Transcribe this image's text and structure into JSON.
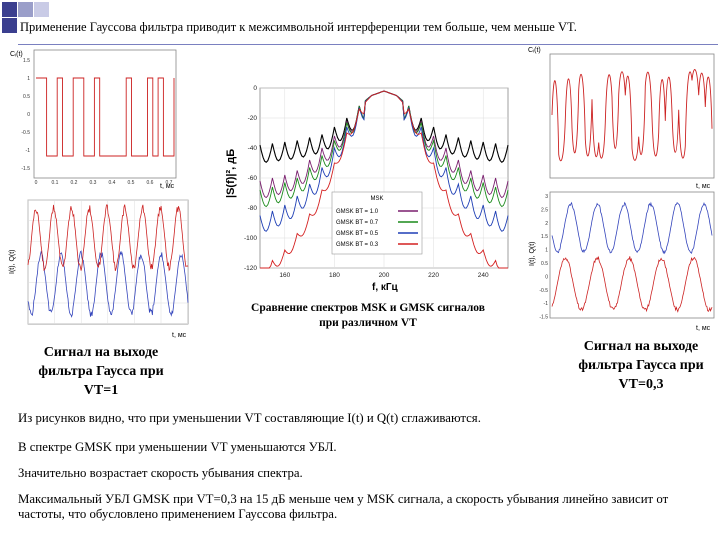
{
  "slide": {
    "title": "Применение Гауссова фильтра приводит к межсимвольной интерференции тем больше, чем меньше  VT.",
    "squares": [
      "#3b3f8f",
      "#9a9ec9",
      "#c9cbe6",
      "#3b3f8f"
    ]
  },
  "charts": {
    "tl": {
      "ylabel": "Cᵢ(t)",
      "xlabel": "t, мс",
      "yticks": [
        "1.5",
        "1",
        "0.5",
        "0",
        "-0.5",
        "-1",
        "-1.5"
      ],
      "xticks": [
        "0",
        "0.1",
        "0.2",
        "0.3",
        "0.4",
        "0.5",
        "0.6",
        "0.7"
      ],
      "color": "#cc2222"
    },
    "ml": {
      "ylabel": "I(t), Q(t)",
      "xlabel": "t, мс",
      "color_i": "#cc2222",
      "color_q": "#3344bb"
    },
    "tr": {
      "ylabel": "Cᵢ(t)",
      "xlabel": "t, мс",
      "color": "#cc2222"
    },
    "mr": {
      "ylabel": "I(t), Q(t)",
      "xlabel": "t, мс",
      "yticks": [
        "3",
        "2.5",
        "2",
        "1.5",
        "1",
        "0.5",
        "0",
        "-0.5",
        "-1",
        "-1.5"
      ],
      "color_i": "#cc2222",
      "color_q": "#3344bb"
    },
    "spectrum": {
      "ylabel": "|S(f)|², дБ",
      "xlabel": "f, кГц",
      "yticks": [
        "0",
        "-20",
        "-40",
        "-60",
        "-80",
        "-100",
        "-120"
      ],
      "xticks": [
        "160",
        "180",
        "200",
        "220",
        "240"
      ],
      "legend_title": "MSK",
      "legend": [
        "GMSK BT = 1.0",
        "GMSK BT = 0.7",
        "GMSK BT = 0.5",
        "GMSK BT = 0.3"
      ],
      "colors": [
        "#000000",
        "#7a1f6e",
        "#1a8a1a",
        "#1f3fb5",
        "#d42020"
      ]
    }
  },
  "chart_data": [
    {
      "type": "line",
      "xlabel": "f, кГц",
      "ylabel": "|S(f)|², дБ",
      "ylim": [
        -120,
        0
      ],
      "xlim": [
        150,
        250
      ],
      "x": [
        150,
        155,
        160,
        165,
        170,
        175,
        180,
        185,
        190,
        195,
        200,
        205,
        210,
        215,
        220,
        225,
        230,
        235,
        240,
        245,
        250
      ],
      "series": [
        {
          "name": "MSK",
          "values": [
            -38,
            -37,
            -36,
            -35,
            -33,
            -31,
            -26,
            -20,
            -12,
            -5,
            -2,
            -5,
            -12,
            -20,
            -26,
            -31,
            -33,
            -35,
            -36,
            -37,
            -38
          ]
        },
        {
          "name": "GMSK BT = 1.0",
          "values": [
            -62,
            -60,
            -58,
            -55,
            -48,
            -40,
            -32,
            -22,
            -12,
            -5,
            -2,
            -5,
            -12,
            -22,
            -32,
            -40,
            -48,
            -55,
            -58,
            -60,
            -62
          ]
        },
        {
          "name": "GMSK BT = 0.7",
          "values": [
            -68,
            -66,
            -63,
            -60,
            -53,
            -45,
            -35,
            -23,
            -12,
            -5,
            -2,
            -5,
            -12,
            -23,
            -35,
            -45,
            -53,
            -60,
            -63,
            -66,
            -68
          ]
        },
        {
          "name": "GMSK BT = 0.5",
          "values": [
            -85,
            -82,
            -78,
            -72,
            -64,
            -53,
            -40,
            -26,
            -13,
            -5,
            -2,
            -5,
            -13,
            -26,
            -40,
            -53,
            -64,
            -72,
            -78,
            -82,
            -85
          ]
        },
        {
          "name": "GMSK BT = 0.3",
          "values": [
            -120,
            -115,
            -108,
            -97,
            -84,
            -68,
            -50,
            -30,
            -14,
            -5,
            -2,
            -5,
            -14,
            -30,
            -50,
            -68,
            -84,
            -97,
            -108,
            -115,
            -120
          ]
        }
      ]
    }
  ],
  "captions": {
    "center": [
      "Сравнение спектров MSK и GMSK сигналов",
      "при различном VT"
    ],
    "left": [
      "Сигнал на выходе",
      "фильтра Гаусса при",
      "VT=1"
    ],
    "right": [
      "Сигнал на выходе",
      "фильтра Гаусса при",
      "VT=0,3"
    ]
  },
  "paragraphs": [
    "Из рисунков видно, что при уменьшении VT составляющие I(t) и Q(t) сглаживаются.",
    "В спектре GMSK при уменьшении VT уменьшаются УБЛ.",
    "Значительно возрастает скорость убывания спектра.",
    "Максимальный УБЛ GMSK при VT=0,3 на 15 дБ меньше чем у MSK сигнала, а скорость убывания линейно зависит от частоты, что обусловлено применением Гауссова фильтра."
  ]
}
